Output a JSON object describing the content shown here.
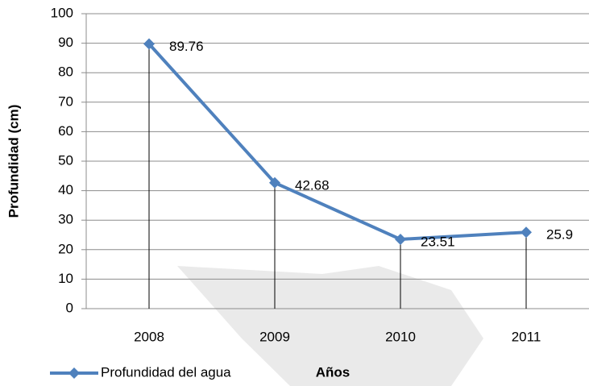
{
  "chart_data": {
    "type": "line",
    "x_label": "Años",
    "y_label": "Profundidad  (cm)",
    "categories": [
      "2008",
      "2009",
      "2010",
      "2011"
    ],
    "series": [
      {
        "name": "Profundidad del agua",
        "color": "#4f81bd",
        "values": [
          89.76,
          42.68,
          23.51,
          25.9
        ]
      }
    ],
    "ylim": [
      0,
      100
    ],
    "yticks": [
      0,
      10,
      20,
      30,
      40,
      50,
      60,
      70,
      80,
      90,
      100
    ],
    "grid": true,
    "drop_lines": true,
    "legend": "bottom-left"
  }
}
